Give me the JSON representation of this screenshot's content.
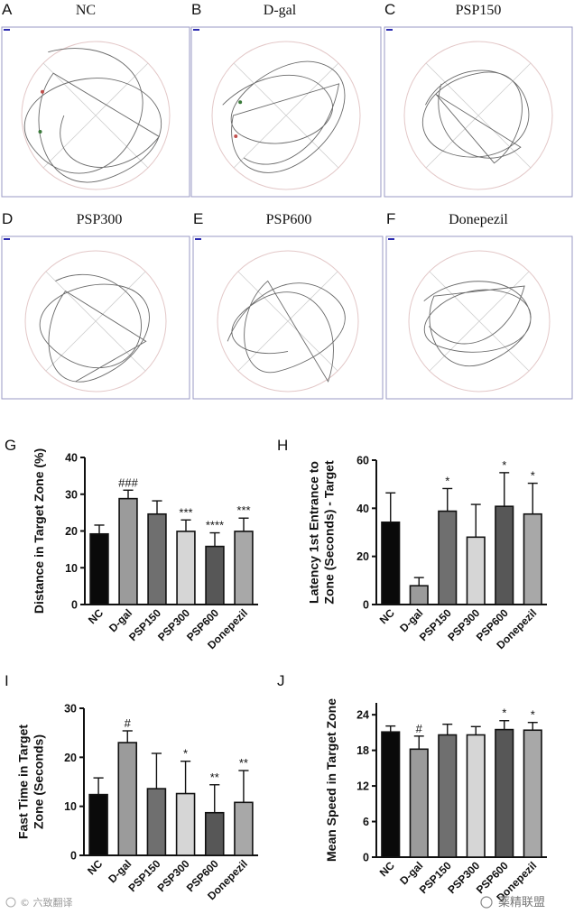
{
  "track_panels": [
    {
      "letter": "A",
      "title": "NC"
    },
    {
      "letter": "B",
      "title": "D-gal"
    },
    {
      "letter": "C",
      "title": "PSP150"
    },
    {
      "letter": "D",
      "title": "PSP300"
    },
    {
      "letter": "E",
      "title": "PSP600"
    },
    {
      "letter": "F",
      "title": "Donepezil"
    }
  ],
  "chart_data": [
    {
      "panel": "G",
      "type": "bar",
      "categories": [
        "NC",
        "D-gal",
        "PSP150",
        "PSP300",
        "PSP600",
        "Donepezil"
      ],
      "values": [
        19.2,
        28.8,
        24.6,
        19.9,
        15.8,
        19.9
      ],
      "errors": [
        2.4,
        2.3,
        3.6,
        3.1,
        3.7,
        3.6
      ],
      "annotations": [
        "",
        "###",
        "",
        "***",
        "****",
        "***"
      ],
      "colors": [
        "#0a0a0a",
        "#9b9b9b",
        "#6f6f6f",
        "#d6d6d6",
        "#575757",
        "#a8a8a8"
      ],
      "ylabel": "Distance in Target Zone (%)",
      "ylim": [
        0,
        40
      ],
      "yticks": [
        "0",
        "10",
        "20",
        "30",
        "40"
      ]
    },
    {
      "panel": "H",
      "type": "bar",
      "categories": [
        "NC",
        "D-gal",
        "PSP150",
        "PSP300",
        "PSP600",
        "Donepezil"
      ],
      "values": [
        34.2,
        7.8,
        38.8,
        28.0,
        40.8,
        37.6
      ],
      "errors": [
        12.2,
        3.4,
        9.4,
        13.6,
        14.0,
        12.8
      ],
      "annotations": [
        "",
        "",
        "*",
        "",
        "*",
        "*"
      ],
      "colors": [
        "#0a0a0a",
        "#9b9b9b",
        "#6f6f6f",
        "#d6d6d6",
        "#575757",
        "#a8a8a8"
      ],
      "ylabel": "Latency 1st Entrance to Zone (Seconds) - Target",
      "ylim": [
        0,
        60
      ],
      "yticks": [
        "0",
        "20",
        "40",
        "60"
      ]
    },
    {
      "panel": "I",
      "type": "bar",
      "categories": [
        "NC",
        "D-gal",
        "PSP150",
        "PSP300",
        "PSP600",
        "Donepezil"
      ],
      "values": [
        12.4,
        23.0,
        13.6,
        12.6,
        8.7,
        10.8
      ],
      "errors": [
        3.4,
        2.4,
        7.2,
        6.6,
        5.7,
        6.5
      ],
      "annotations": [
        "",
        "#",
        "",
        "*",
        "**",
        "**"
      ],
      "colors": [
        "#0a0a0a",
        "#9b9b9b",
        "#6f6f6f",
        "#d6d6d6",
        "#575757",
        "#a8a8a8"
      ],
      "ylabel": "Fast Time in Target Zone (Seconds)",
      "ylim": [
        0,
        30
      ],
      "yticks": [
        "0",
        "10",
        "20",
        "30"
      ]
    },
    {
      "panel": "J",
      "type": "bar",
      "categories": [
        "NC",
        "D-gal",
        "PSP150",
        "PSP300",
        "PSP600",
        "Donepezil"
      ],
      "values": [
        21.1,
        18.2,
        20.6,
        20.6,
        21.5,
        21.4
      ],
      "errors": [
        1.0,
        2.2,
        1.8,
        1.4,
        1.5,
        1.3
      ],
      "annotations": [
        "",
        "#",
        "",
        "",
        "*",
        "*"
      ],
      "colors": [
        "#0a0a0a",
        "#9b9b9b",
        "#6f6f6f",
        "#d6d6d6",
        "#575757",
        "#a8a8a8"
      ],
      "ylabel": "Mean Speed in Target Zone",
      "ylim": [
        0,
        26
      ],
      "yticks": [
        "0",
        "6",
        "12",
        "18",
        "24"
      ]
    }
  ],
  "watermarks": {
    "left": "© 六致翻译",
    "right": "薬精联盟"
  }
}
